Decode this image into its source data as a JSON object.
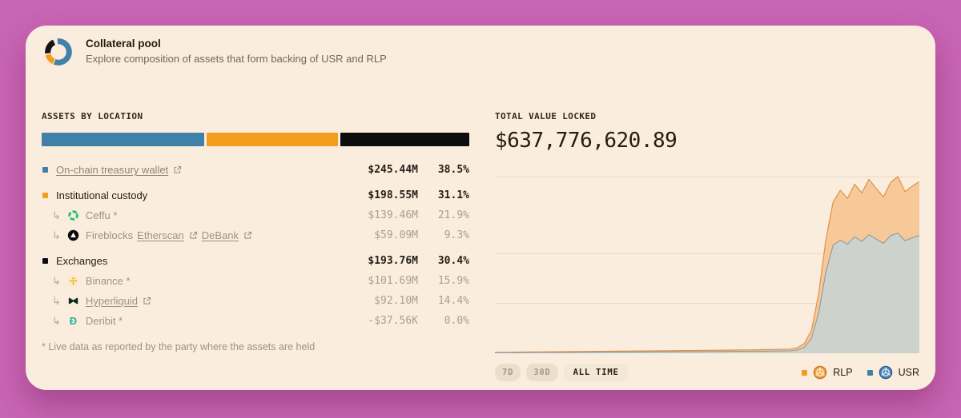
{
  "page": {
    "background": "#c865b4",
    "card_bg": "#faeddd"
  },
  "header": {
    "title": "Collateral pool",
    "subtitle": "Explore composition of assets that form backing of USR and RLP",
    "logo": "donut-logo",
    "logo_colors": {
      "blue": "#4180a8",
      "orange": "#f49d1d",
      "black": "#141414"
    }
  },
  "assets": {
    "heading": "ASSETS BY LOCATION",
    "bar": [
      {
        "color": "#4180a8",
        "pct": 38.5
      },
      {
        "color": "#f49d1d",
        "pct": 31.1
      },
      {
        "color": "#0d0d0d",
        "pct": 30.4
      }
    ],
    "rows": [
      {
        "level": 0,
        "bullet": "#4180a8",
        "label": "On-chain treasury wallet",
        "link": true,
        "external": true,
        "value": "$245.44M",
        "pct": "38.5%",
        "em": true
      },
      {
        "level": 0,
        "bullet": "#f49d1d",
        "label": "Institutional custody",
        "value": "$198.55M",
        "pct": "31.1%",
        "em": true,
        "gap": true
      },
      {
        "level": 1,
        "icon": "ceffu",
        "label": "Ceffu *",
        "value": "$139.46M",
        "pct": "21.9%"
      },
      {
        "level": 1,
        "icon": "fireblocks",
        "label": "Fireblocks",
        "links": [
          {
            "text": "Etherscan",
            "name": "etherscan"
          },
          {
            "text": "DeBank",
            "name": "debank"
          }
        ],
        "value": "$59.09M",
        "pct": "9.3%"
      },
      {
        "level": 0,
        "bullet": "#0d0d0d",
        "label": "Exchanges",
        "value": "$193.76M",
        "pct": "30.4%",
        "em": true,
        "gap": true
      },
      {
        "level": 1,
        "icon": "binance",
        "label": "Binance *",
        "value": "$101.69M",
        "pct": "15.9%"
      },
      {
        "level": 1,
        "icon": "hyperliquid",
        "label": "Hyperliquid",
        "link": true,
        "external": true,
        "value": "$92.10M",
        "pct": "14.4%"
      },
      {
        "level": 1,
        "icon": "deribit",
        "label": "Deribit *",
        "value": "-$37.56K",
        "pct": "0.0%"
      }
    ],
    "footnote": "* Live data as reported by the party where the assets are held"
  },
  "tvl": {
    "heading": "TOTAL VALUE LOCKED",
    "value": "$637,776,620.89"
  },
  "controls": {
    "ranges": [
      {
        "label": "7D",
        "active": false
      },
      {
        "label": "30D",
        "active": false
      },
      {
        "label": "ALL TIME",
        "active": true
      }
    ]
  },
  "legend": [
    {
      "label": "RLP",
      "swatch": "#f49d1d",
      "icon": "rlp-coin"
    },
    {
      "label": "USR",
      "swatch": "#4180a8",
      "icon": "usr-coin"
    }
  ],
  "chart_data": {
    "type": "area",
    "stacked": true,
    "title": "TOTAL VALUE LOCKED",
    "x_range_label": "ALL TIME",
    "unit": "USD millions",
    "ylim": [
      0,
      700
    ],
    "grid_values": [
      655,
      370,
      185
    ],
    "grid_color": "#e7d8c5",
    "legend_position": "bottom-right",
    "series": [
      {
        "name": "USR",
        "fill": "#cacfcb",
        "line": "#8a9ba3",
        "values": [
          2.0,
          2.1,
          2.3,
          2.4,
          2.6,
          2.7,
          2.9,
          3.0,
          3.2,
          3.3,
          3.5,
          3.6,
          3.8,
          3.9,
          4.1,
          4.2,
          4.4,
          4.5,
          4.7,
          4.8,
          5.0,
          5.1,
          5.3,
          5.4,
          5.6,
          5.7,
          5.9,
          6.0,
          6.2,
          6.3,
          6.5,
          6.6,
          6.8,
          7.0,
          7.2,
          7.4,
          7.6,
          7.8,
          8.0,
          8.3,
          8.6,
          9.0,
          12,
          22,
          55,
          150,
          300,
          400,
          420,
          405,
          432,
          415,
          440,
          424,
          408,
          436,
          446,
          418,
          428,
          437
        ]
      },
      {
        "name": "RLP",
        "fill": "#f7c693",
        "line": "#e2914a",
        "values": [
          1.5,
          1.6,
          1.7,
          1.8,
          1.9,
          2.0,
          2.1,
          2.2,
          2.3,
          2.4,
          2.5,
          2.6,
          2.7,
          2.8,
          2.9,
          3.0,
          3.1,
          3.2,
          3.3,
          3.4,
          3.5,
          3.6,
          3.7,
          3.8,
          3.9,
          4.0,
          4.1,
          4.2,
          4.3,
          4.4,
          4.5,
          4.6,
          4.7,
          4.8,
          4.9,
          5.0,
          5.2,
          5.4,
          5.6,
          5.9,
          6.2,
          6.6,
          8,
          14,
          30,
          70,
          120,
          160,
          185,
          170,
          195,
          180,
          205,
          188,
          172,
          198,
          210,
          182,
          192,
          200
        ]
      }
    ]
  }
}
